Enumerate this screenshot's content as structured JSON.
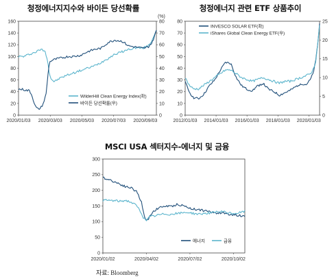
{
  "source": "자료: Bloomberg",
  "chart_data": [
    {
      "type": "line",
      "title": "청정에너지지수와 바이든 당선확률",
      "unit_right": "(%)",
      "xlabels": [
        "2020/01/03",
        "2020/03/03",
        "2020/05/03",
        "2020/07/03",
        "2020/09/03"
      ],
      "x_range": [
        0,
        1
      ],
      "ylim": [
        0,
        160
      ],
      "yticks": [
        0,
        20,
        40,
        60,
        80,
        100,
        120,
        140,
        160
      ],
      "y2lim": [
        0,
        80
      ],
      "y2ticks": [
        0,
        10,
        20,
        30,
        40,
        50,
        60,
        70,
        80
      ],
      "legend_position": "bottom-right",
      "colors": {
        "index": "#5ab4cc",
        "prob": "#1f4e79"
      },
      "series": [
        {
          "name": "WilderHill Clean Energy Index(좌)",
          "axis": "left",
          "color": "#5ab4cc",
          "x": [
            0,
            0.04,
            0.08,
            0.12,
            0.16,
            0.19,
            0.21,
            0.22,
            0.235,
            0.26,
            0.3,
            0.35,
            0.4,
            0.45,
            0.5,
            0.55,
            0.6,
            0.65,
            0.7,
            0.75,
            0.8,
            0.85,
            0.9,
            0.94,
            0.97,
            1.0
          ],
          "values": [
            100,
            100,
            104,
            107,
            112,
            110,
            96,
            76,
            62,
            57,
            63,
            68,
            72,
            76,
            80,
            84,
            90,
            97,
            104,
            108,
            112,
            115,
            114,
            118,
            128,
            146
          ]
        },
        {
          "name": "바이든 당선확률(우)",
          "axis": "right",
          "color": "#1f4e79",
          "x": [
            0,
            0.03,
            0.06,
            0.08,
            0.1,
            0.12,
            0.14,
            0.16,
            0.18,
            0.2,
            0.21,
            0.22,
            0.23,
            0.25,
            0.28,
            0.32,
            0.36,
            0.4,
            0.45,
            0.5,
            0.55,
            0.6,
            0.65,
            0.7,
            0.75,
            0.8,
            0.85,
            0.9,
            0.94,
            0.97,
            1.0
          ],
          "values": [
            22,
            22,
            21,
            21,
            16,
            8,
            5,
            6,
            10,
            18,
            30,
            42,
            46,
            47,
            48,
            49,
            50,
            50,
            51,
            54,
            56,
            57,
            62,
            64,
            63,
            59,
            58,
            57,
            58,
            62,
            72
          ]
        }
      ]
    },
    {
      "type": "line",
      "title": "청정에너지 관련 ETF 상품추이",
      "xlabels": [
        "2012/01/03",
        "2014/01/03",
        "2016/01/03",
        "2018/01/03",
        "2020/01/03"
      ],
      "x_range": [
        0,
        1
      ],
      "ylim": [
        0,
        80
      ],
      "yticks": [
        0,
        10,
        20,
        30,
        40,
        50,
        60,
        70,
        80
      ],
      "y2lim": [
        0,
        25
      ],
      "y2ticks": [
        0,
        5,
        10,
        15,
        20,
        25
      ],
      "legend_position": "top-left",
      "colors": {
        "invesco": "#1f4e79",
        "ishares": "#5ab4cc"
      },
      "series": [
        {
          "name": "INVESCO SOLAR ETF(좌)",
          "axis": "left",
          "color": "#1f4e79",
          "x": [
            0,
            0.03,
            0.06,
            0.1,
            0.14,
            0.18,
            0.22,
            0.26,
            0.3,
            0.34,
            0.38,
            0.42,
            0.46,
            0.5,
            0.54,
            0.58,
            0.62,
            0.66,
            0.7,
            0.74,
            0.78,
            0.82,
            0.86,
            0.9,
            0.93,
            0.95,
            0.97,
            0.99,
            1.0
          ],
          "values": [
            28,
            20,
            15,
            14,
            18,
            25,
            30,
            38,
            45,
            44,
            32,
            25,
            22,
            21,
            25,
            27,
            22,
            20,
            17,
            19,
            21,
            24,
            27,
            26,
            30,
            35,
            45,
            65,
            78
          ]
        },
        {
          "name": "iShares Global Clean Energy ETF(우)",
          "axis": "right",
          "color": "#5ab4cc",
          "x": [
            0,
            0.03,
            0.06,
            0.1,
            0.14,
            0.18,
            0.22,
            0.26,
            0.3,
            0.34,
            0.38,
            0.42,
            0.46,
            0.5,
            0.54,
            0.58,
            0.62,
            0.66,
            0.7,
            0.74,
            0.78,
            0.82,
            0.86,
            0.9,
            0.93,
            0.95,
            0.97,
            0.99,
            1.0
          ],
          "values": [
            10,
            8,
            7,
            7,
            8,
            9,
            10,
            11,
            12,
            12,
            11,
            10,
            9.5,
            9,
            9.5,
            10,
            9.5,
            9,
            8.5,
            9,
            9,
            9.5,
            10,
            10.5,
            11,
            12,
            14,
            20,
            24
          ]
        }
      ]
    },
    {
      "type": "line",
      "title": "MSCI USA 섹터지수-에너지 및 금융",
      "xlabels": [
        "2020/01/02",
        "2020/04/02",
        "2020/07/02",
        "2020/10/02"
      ],
      "x_range": [
        0,
        1
      ],
      "ylim": [
        0,
        300
      ],
      "yticks": [
        0,
        50,
        100,
        150,
        200,
        250,
        300
      ],
      "legend_position": "bottom-right",
      "colors": {
        "energy": "#1f4e79",
        "finance": "#5ab4cc"
      },
      "series": [
        {
          "name": "에너지",
          "color": "#1f4e79",
          "x": [
            0,
            0.04,
            0.08,
            0.12,
            0.16,
            0.2,
            0.24,
            0.27,
            0.29,
            0.31,
            0.33,
            0.36,
            0.4,
            0.44,
            0.48,
            0.52,
            0.56,
            0.6,
            0.64,
            0.68,
            0.72,
            0.76,
            0.8,
            0.84,
            0.88,
            0.92,
            0.96,
            1.0
          ],
          "values": [
            240,
            235,
            228,
            220,
            212,
            208,
            195,
            165,
            120,
            100,
            118,
            135,
            145,
            150,
            148,
            155,
            152,
            145,
            140,
            138,
            135,
            130,
            128,
            128,
            125,
            122,
            120,
            118
          ]
        },
        {
          "name": "금융",
          "color": "#5ab4cc",
          "x": [
            0,
            0.04,
            0.08,
            0.12,
            0.16,
            0.2,
            0.24,
            0.27,
            0.29,
            0.31,
            0.33,
            0.36,
            0.4,
            0.44,
            0.48,
            0.52,
            0.56,
            0.6,
            0.64,
            0.68,
            0.72,
            0.76,
            0.8,
            0.84,
            0.88,
            0.92,
            0.96,
            1.0
          ],
          "values": [
            168,
            168,
            167,
            165,
            168,
            162,
            150,
            128,
            110,
            105,
            115,
            118,
            122,
            125,
            123,
            126,
            128,
            130,
            126,
            124,
            127,
            128,
            130,
            132,
            128,
            126,
            128,
            133
          ]
        }
      ]
    }
  ]
}
